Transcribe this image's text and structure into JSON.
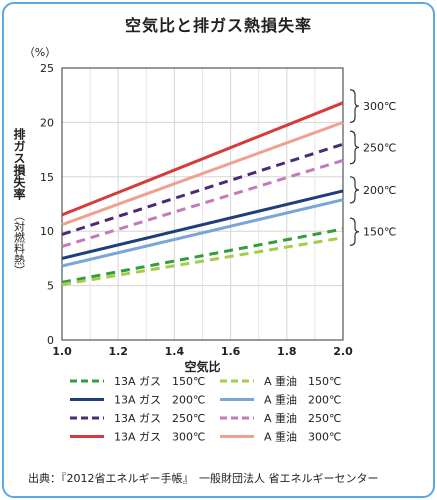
{
  "chart_data": {
    "type": "line",
    "title": "空気比と排ガス熱損失率",
    "unit_label": "（%）",
    "xlabel": "空気比",
    "ylabel": "排ガス損失率",
    "ylabel_sub": "（対燃料熱）",
    "xlim": [
      1.0,
      2.0
    ],
    "ylim": [
      0,
      25
    ],
    "x_ticks": [
      "1.0",
      "1.2",
      "1.4",
      "1.6",
      "1.8",
      "2.0"
    ],
    "y_ticks": [
      "0",
      "5",
      "10",
      "15",
      "20",
      "25"
    ],
    "grid": true,
    "series": [
      {
        "name": "13A ガス　150℃",
        "color": "#2e9e3e",
        "dash": "dashed",
        "x": [
          1.0,
          2.0
        ],
        "y": [
          5.3,
          10.2
        ]
      },
      {
        "name": "13A ガス　200℃",
        "color": "#1f3f7a",
        "dash": "solid",
        "x": [
          1.0,
          2.0
        ],
        "y": [
          7.5,
          13.7
        ]
      },
      {
        "name": "13A ガス　250℃",
        "color": "#4b2a78",
        "dash": "dashed",
        "x": [
          1.0,
          2.0
        ],
        "y": [
          9.7,
          18.0
        ]
      },
      {
        "name": "13A ガス　300℃",
        "color": "#d63a3a",
        "dash": "solid",
        "x": [
          1.0,
          2.0
        ],
        "y": [
          11.5,
          21.8
        ]
      },
      {
        "name": "A 重油　150℃",
        "color": "#a6cc4a",
        "dash": "dashed",
        "x": [
          1.0,
          2.0
        ],
        "y": [
          5.1,
          9.4
        ]
      },
      {
        "name": "A 重油　200℃",
        "color": "#7aa6d6",
        "dash": "solid",
        "x": [
          1.0,
          2.0
        ],
        "y": [
          6.8,
          12.9
        ]
      },
      {
        "name": "A 重油　250℃",
        "color": "#c47ab8",
        "dash": "dashed",
        "x": [
          1.0,
          2.0
        ],
        "y": [
          8.6,
          16.5
        ]
      },
      {
        "name": "A 重油　300℃",
        "color": "#f0a090",
        "dash": "solid",
        "x": [
          1.0,
          2.0
        ],
        "y": [
          10.6,
          20.0
        ]
      }
    ],
    "annotations": [
      {
        "text": "300℃",
        "y_range": [
          20.0,
          23.0
        ]
      },
      {
        "text": "250℃",
        "y_range": [
          16.2,
          19.2
        ]
      },
      {
        "text": "200℃",
        "y_range": [
          12.6,
          15.0
        ]
      },
      {
        "text": "150℃",
        "y_range": [
          8.7,
          11.2
        ]
      }
    ]
  },
  "source": "出典：『2012省エネルギー手帳』　一般財団法人 省エネルギーセンター"
}
